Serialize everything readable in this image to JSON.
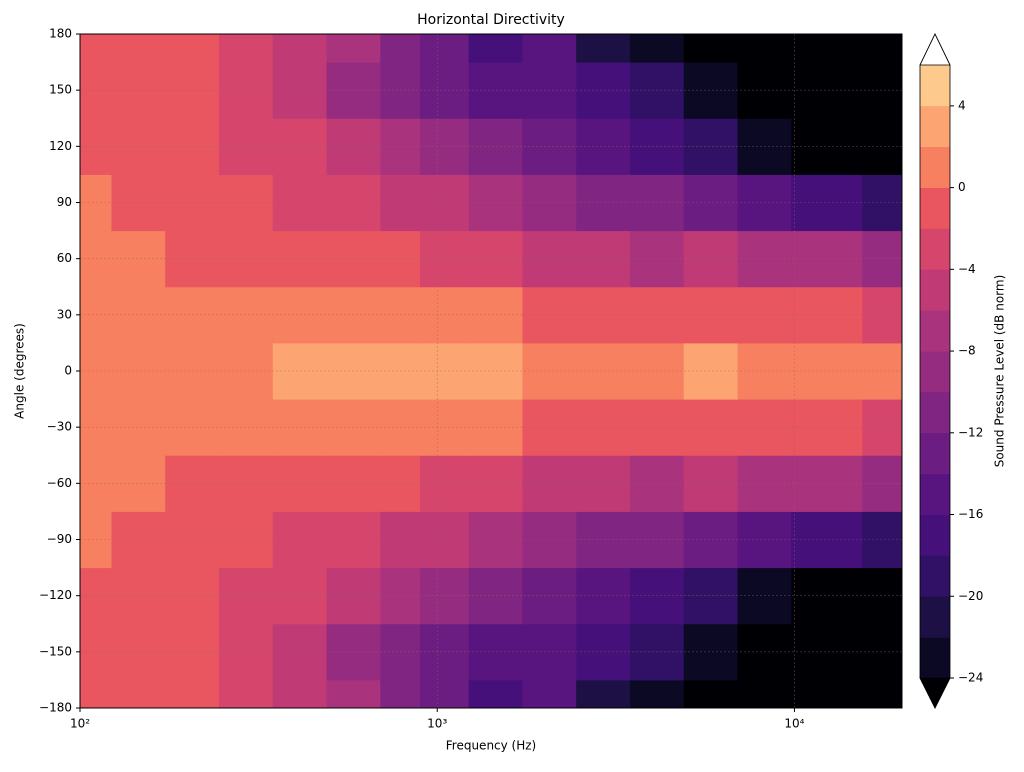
{
  "chart_data": {
    "type": "contour",
    "title": "Horizontal Directivity",
    "x_label": "Frequency (Hz)",
    "y_label": "Angle (degrees)",
    "colorbar_label": "Sound Pressure Level (dB norm)",
    "x_scale": "log",
    "grid": true,
    "x": [
      100,
      150,
      200,
      300,
      400,
      600,
      800,
      1000,
      1500,
      2000,
      3000,
      4000,
      6000,
      8000,
      12000,
      20000
    ],
    "y": [
      -180,
      -150,
      -120,
      -90,
      -60,
      -30,
      0,
      30,
      60,
      90,
      120,
      150,
      180
    ],
    "z": [
      [
        0,
        -0.5,
        -1.5,
        -2,
        -4,
        -6,
        -10,
        -12,
        -16,
        -15,
        -20,
        -22,
        -25,
        -25,
        -25,
        -25
      ],
      [
        0,
        -0.5,
        -1.5,
        -2,
        -4,
        -8,
        -10,
        -12,
        -14,
        -15,
        -17,
        -19,
        -22,
        -25,
        -25,
        -25
      ],
      [
        0,
        -0.5,
        -1.5,
        -2,
        -3,
        -5,
        -7,
        -9,
        -11,
        -13,
        -14,
        -16,
        -18,
        -22,
        -25,
        -25
      ],
      [
        0.5,
        0,
        -1,
        -1.5,
        -2,
        -2,
        -4,
        -5,
        -7,
        -8,
        -10,
        -11,
        -12,
        -14,
        -16,
        -18
      ],
      [
        1,
        0.5,
        0,
        0,
        -0.5,
        0,
        -1,
        -2,
        -3,
        -4,
        -5,
        -6,
        -5,
        -6,
        -7,
        -8
      ],
      [
        1,
        1,
        0.5,
        1.5,
        1.5,
        1,
        1.5,
        1,
        0.5,
        0,
        -1,
        -0.5,
        0,
        -0.5,
        -1,
        -2
      ],
      [
        1.5,
        1.5,
        1,
        2,
        2.5,
        2.5,
        3,
        3,
        3,
        2,
        1,
        2,
        2.5,
        2,
        2,
        1
      ],
      [
        1,
        1,
        0.5,
        1.5,
        1.5,
        1,
        1.5,
        1,
        0.5,
        0,
        -1,
        -0.5,
        0,
        -0.5,
        -1,
        -2
      ],
      [
        1,
        0.5,
        0,
        0,
        -0.5,
        0,
        -1,
        -2,
        -3,
        -4,
        -5,
        -6,
        -5,
        -6,
        -7,
        -8
      ],
      [
        0.5,
        0,
        -1,
        -1.5,
        -2,
        -2,
        -4,
        -5,
        -7,
        -8,
        -10,
        -11,
        -12,
        -14,
        -16,
        -18
      ],
      [
        0,
        -0.5,
        -1.5,
        -2,
        -3,
        -5,
        -7,
        -9,
        -11,
        -13,
        -14,
        -16,
        -18,
        -22,
        -25,
        -25
      ],
      [
        0,
        -0.5,
        -1.5,
        -2,
        -4,
        -8,
        -10,
        -12,
        -14,
        -15,
        -17,
        -19,
        -22,
        -25,
        -25,
        -25
      ],
      [
        0,
        -0.5,
        -1.5,
        -2,
        -4,
        -6,
        -10,
        -12,
        -16,
        -15,
        -20,
        -22,
        -25,
        -25,
        -25,
        -25
      ]
    ],
    "xlim": [
      100,
      20000
    ],
    "ylim": [
      -180,
      180
    ],
    "xticks": [
      {
        "value": 100,
        "label": "10²"
      },
      {
        "value": 1000,
        "label": "10³"
      },
      {
        "value": 10000,
        "label": "10⁴"
      }
    ],
    "yticks": [
      {
        "value": -180,
        "label": "−180"
      },
      {
        "value": -150,
        "label": "−150"
      },
      {
        "value": -120,
        "label": "−120"
      },
      {
        "value": -90,
        "label": "−90"
      },
      {
        "value": -60,
        "label": "−60"
      },
      {
        "value": -30,
        "label": "−30"
      },
      0,
      30,
      60,
      90,
      120,
      150,
      180
    ],
    "levels": [
      -24,
      -22,
      -20,
      -18,
      -16,
      -14,
      -12,
      -10,
      -8,
      -6,
      -4,
      -2,
      0,
      2,
      4,
      6
    ],
    "colors": [
      "#0b0924",
      "#1c1044",
      "#301165",
      "#45107a",
      "#58157f",
      "#6c1d81",
      "#802582",
      "#952c80",
      "#aa337d",
      "#c03a76",
      "#d6456c",
      "#e9565f",
      "#f6805f",
      "#fca572",
      "#fec98d",
      "#fcefb0"
    ],
    "under_color": "#000004",
    "over_color": "#ffffff",
    "colorbar_lim": [
      -24,
      6
    ],
    "colorbar_ticks": [
      {
        "value": -24,
        "label": "−24"
      },
      {
        "value": -20,
        "label": "−20"
      },
      {
        "value": -16,
        "label": "−16"
      },
      {
        "value": -12,
        "label": "−12"
      },
      {
        "value": -8,
        "label": "−8"
      },
      {
        "value": -4,
        "label": "−4"
      },
      0,
      4
    ]
  }
}
